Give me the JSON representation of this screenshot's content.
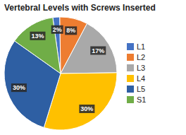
{
  "chart_data": {
    "type": "pie",
    "title": "Vertebral Levels with Screws Inserted",
    "categories": [
      "L1",
      "L2",
      "L3",
      "L4",
      "L5",
      "S1"
    ],
    "values": [
      2,
      8,
      17,
      30,
      30,
      13
    ],
    "value_labels": [
      "2%",
      "8%",
      "17%",
      "30%",
      "30%",
      "13%"
    ],
    "colors": [
      "#4472C4",
      "#ED7D31",
      "#A9A9A9",
      "#FFC000",
      "#2E5FA3",
      "#70AD47"
    ],
    "data_labels": true,
    "legend": "right"
  }
}
